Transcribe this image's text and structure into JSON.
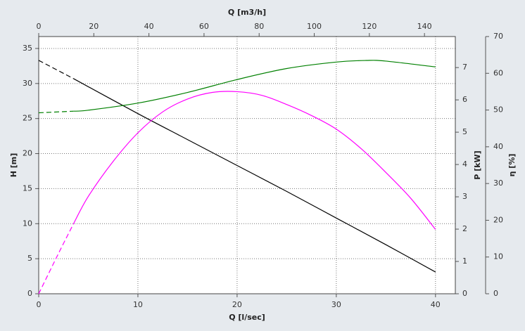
{
  "chart_data": {
    "type": "line",
    "xlabel": "Q [l/sec]",
    "xlim": [
      0,
      42
    ],
    "xticks": [
      0,
      10,
      20,
      30,
      40
    ],
    "x2label": "Q [m3/h]",
    "x2lim": [
      0,
      151.2
    ],
    "x2ticks": [
      0,
      20,
      40,
      60,
      80,
      100,
      120,
      140
    ],
    "ylabel": "H [m]",
    "ylim": [
      0,
      36.7
    ],
    "yticks": [
      0,
      5,
      10,
      15,
      20,
      25,
      30,
      35
    ],
    "y2label": "P [kW]",
    "y2lim": [
      0,
      7.96
    ],
    "y2ticks": [
      0,
      1,
      2,
      3,
      4,
      5,
      6,
      7
    ],
    "y3label": "η [%]",
    "y3lim": [
      0,
      70
    ],
    "y3ticks": [
      0,
      10,
      20,
      30,
      40,
      50,
      60,
      70
    ],
    "grid": true,
    "series": [
      {
        "color": "#000000",
        "axis": "y",
        "style": "dashed",
        "x": [
          0,
          3.5
        ],
        "values": [
          33.3,
          30.7
        ]
      },
      {
        "color": "#000000",
        "axis": "y",
        "style": "solid",
        "x": [
          3.5,
          10,
          15,
          20,
          25,
          30,
          35,
          40
        ],
        "values": [
          30.7,
          25.7,
          22.0,
          18.3,
          14.6,
          10.8,
          7.0,
          3.1
        ]
      },
      {
        "color": "#008000",
        "axis": "y2",
        "style": "dashed",
        "x": [
          0,
          3.5
        ],
        "values": [
          5.6,
          5.65
        ]
      },
      {
        "color": "#008000",
        "axis": "y2",
        "style": "solid",
        "x": [
          3.5,
          5,
          10,
          15,
          20,
          25,
          30,
          33,
          35,
          40
        ],
        "values": [
          5.65,
          5.68,
          5.9,
          6.23,
          6.63,
          6.97,
          7.17,
          7.22,
          7.2,
          7.02
        ]
      },
      {
        "color": "#ff00ff",
        "axis": "y3",
        "style": "dashed",
        "x": [
          0,
          2,
          3.5
        ],
        "values": [
          0,
          11,
          19
        ]
      },
      {
        "color": "#ff00ff",
        "axis": "y3",
        "style": "solid",
        "x": [
          3.5,
          5,
          7.5,
          10,
          12.5,
          15,
          17.5,
          20,
          22.5,
          25,
          27.5,
          30,
          32.5,
          35,
          37.5,
          40
        ],
        "values": [
          19,
          26.5,
          36,
          43.8,
          49.5,
          53,
          54.8,
          55,
          54,
          51.5,
          48.5,
          44.8,
          39.5,
          33,
          26,
          17.5
        ]
      }
    ]
  }
}
